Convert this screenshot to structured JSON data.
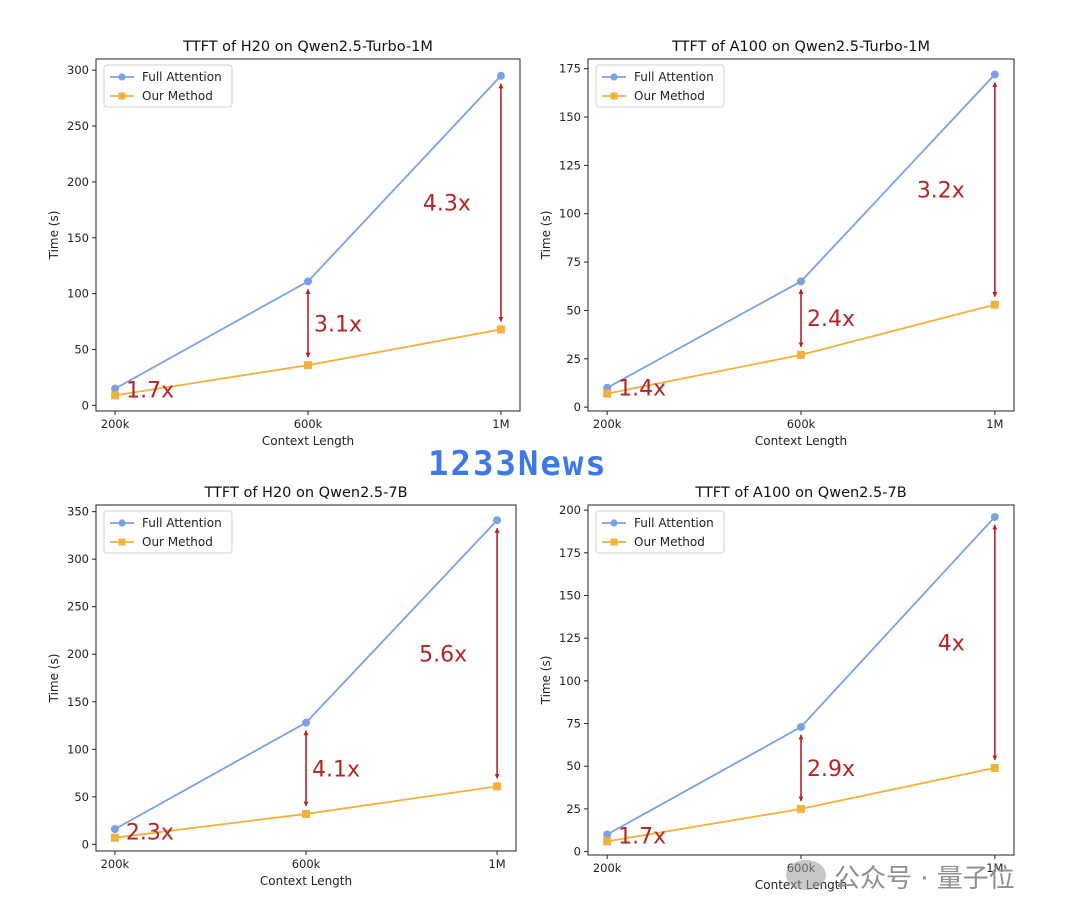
{
  "watermark": "1233News",
  "brand": "公众号 · 量子位",
  "colors": {
    "full": "#7aa0e6",
    "ours": "#f4b03c",
    "arrow": "#b32525",
    "ratio": "#b32525"
  },
  "chart_data": [
    {
      "type": "line",
      "title": "TTFT of H20 on Qwen2.5-Turbo-1M",
      "xlabel": "Context Length",
      "ylabel": "Time (s)",
      "categories": [
        "200k",
        "600k",
        "1M"
      ],
      "ylim": [
        -5,
        310
      ],
      "yticks": [
        0,
        50,
        100,
        150,
        200,
        250,
        300
      ],
      "legend": "top-left",
      "series": [
        {
          "name": "Full Attention",
          "values": [
            15,
            111,
            295
          ]
        },
        {
          "name": "Our Method",
          "values": [
            9,
            36,
            68
          ]
        }
      ],
      "ratios": [
        "1.7x",
        "3.1x",
        "4.3x"
      ]
    },
    {
      "type": "line",
      "title": "TTFT of A100 on Qwen2.5-Turbo-1M",
      "xlabel": "Context Length",
      "ylabel": "Time (s)",
      "categories": [
        "200k",
        "600k",
        "1M"
      ],
      "ylim": [
        -2,
        180
      ],
      "yticks": [
        0,
        25,
        50,
        75,
        100,
        125,
        150,
        175
      ],
      "legend": "top-left",
      "series": [
        {
          "name": "Full Attention",
          "values": [
            10,
            65,
            172
          ]
        },
        {
          "name": "Our Method",
          "values": [
            7,
            27,
            53
          ]
        }
      ],
      "ratios": [
        "1.4x",
        "2.4x",
        "3.2x"
      ]
    },
    {
      "type": "line",
      "title": "TTFT of H20 on Qwen2.5-7B",
      "xlabel": "Context Length",
      "ylabel": "Time (s)",
      "categories": [
        "200k",
        "600k",
        "1M"
      ],
      "ylim": [
        -7,
        357
      ],
      "yticks": [
        0,
        50,
        100,
        150,
        200,
        250,
        300,
        350
      ],
      "legend": "top-left",
      "series": [
        {
          "name": "Full Attention",
          "values": [
            16,
            128,
            341
          ]
        },
        {
          "name": "Our Method",
          "values": [
            7,
            32,
            61
          ]
        }
      ],
      "ratios": [
        "2.3x",
        "4.1x",
        "5.6x"
      ]
    },
    {
      "type": "line",
      "title": "TTFT of A100 on Qwen2.5-7B",
      "xlabel": "Context Length",
      "ylabel": "Time (s)",
      "categories": [
        "200k",
        "600k",
        "1M"
      ],
      "ylim": [
        -2,
        203
      ],
      "yticks": [
        0,
        25,
        50,
        75,
        100,
        125,
        150,
        175,
        200
      ],
      "legend": "top-left",
      "series": [
        {
          "name": "Full Attention",
          "values": [
            10,
            73,
            196
          ]
        },
        {
          "name": "Our Method",
          "values": [
            6,
            25,
            49
          ]
        }
      ],
      "ratios": [
        "1.7x",
        "2.9x",
        "4x"
      ]
    }
  ]
}
